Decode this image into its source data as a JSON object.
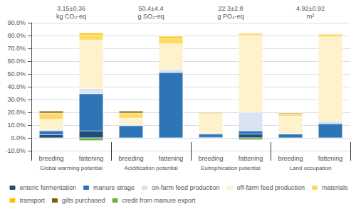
{
  "chart_data": {
    "type": "bar",
    "stacked": true,
    "categories": [
      "breeding",
      "fattening",
      "breeding",
      "fattening",
      "breeding",
      "fattening",
      "breeding",
      "fattening"
    ],
    "groups": [
      "Global warming potential",
      "Acidification potential",
      "Eutrophication potential",
      "Land occupation"
    ],
    "group_titles": [
      "3.15±0.36\nkg CO₂-eq",
      "50.4±4.4\ng SO₂-eq",
      "22.3±2.8\ng PO₄-eq",
      "4.92±0.92\nm²"
    ],
    "series": [
      {
        "name": "enteric fermentation",
        "color": "#1f4e79",
        "values": [
          2.5,
          5.5,
          0.0,
          0.0,
          0.5,
          3.0,
          0.0,
          0.0
        ]
      },
      {
        "name": "manure strage",
        "color": "#2e75b6",
        "values": [
          3.0,
          29.0,
          9.5,
          51.0,
          2.5,
          2.5,
          3.0,
          11.0
        ]
      },
      {
        "name": "on-farm feed production",
        "color": "#dae3f3",
        "values": [
          1.0,
          4.0,
          1.0,
          2.5,
          1.0,
          14.5,
          0.5,
          2.0
        ]
      },
      {
        "name": "off-farm feed production",
        "color": "#fef2cc",
        "values": [
          8.0,
          38.0,
          5.0,
          20.0,
          14.5,
          60.0,
          13.5,
          66.0
        ]
      },
      {
        "name": "materials",
        "color": "#ffd966",
        "values": [
          4.5,
          4.0,
          3.5,
          4.5,
          1.0,
          1.5,
          1.5,
          2.0
        ]
      },
      {
        "name": "transport",
        "color": "#ffc000",
        "values": [
          0.5,
          1.5,
          0.5,
          1.5,
          0.0,
          0.5,
          0.5,
          0.5
        ]
      },
      {
        "name": "gilts purchased",
        "color": "#7f6000",
        "values": [
          1.5,
          0.0,
          1.5,
          0.0,
          0.5,
          0.0,
          0.5,
          0.0
        ]
      },
      {
        "name": "credit from manure export",
        "color": "#70ad47",
        "values": [
          0.0,
          -2.0,
          0.0,
          0.0,
          0.0,
          -1.5,
          0.0,
          0.0
        ]
      }
    ],
    "ylim": [
      -10,
      90
    ],
    "yticks": [
      {
        "value": -10,
        "label": "-10.0%"
      },
      {
        "value": 0,
        "label": "0.0%"
      },
      {
        "value": 10,
        "label": "10.0%"
      },
      {
        "value": 20,
        "label": "20.0%"
      },
      {
        "value": 30,
        "label": "30.0%"
      },
      {
        "value": 40,
        "label": "40.0%"
      },
      {
        "value": 50,
        "label": "50.0%"
      },
      {
        "value": 60,
        "label": "60.0%"
      },
      {
        "value": 70,
        "label": "70.0%"
      },
      {
        "value": 80,
        "label": "80.0%"
      },
      {
        "value": 90,
        "label": "90.0%"
      }
    ],
    "grid": true,
    "legend": "bottom"
  }
}
